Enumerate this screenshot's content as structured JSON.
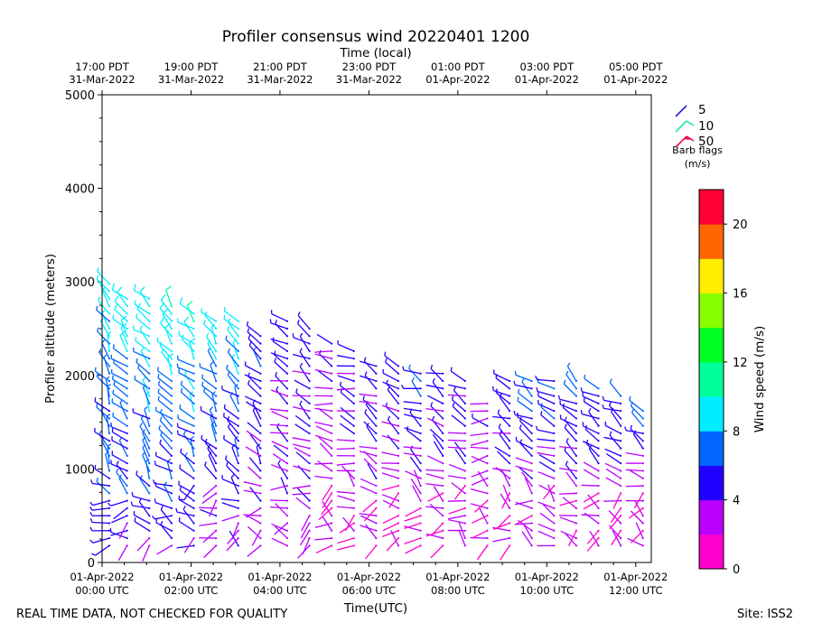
{
  "chart_data": {
    "type": "wind-barb-profile",
    "title": "Profiler consensus wind 20220401 1200",
    "top_axis_label": "Time (local)",
    "xlabel": "Time(UTC)",
    "ylabel": "Profiler altitude (meters)",
    "xlim_hours": [
      0,
      12.35
    ],
    "ylim": [
      0,
      5000
    ],
    "yticks": [
      0,
      1000,
      2000,
      3000,
      4000,
      5000
    ],
    "bottom_ticks": [
      {
        "hour": 0,
        "line1": "01-Apr-2022",
        "line2": "00:00 UTC"
      },
      {
        "hour": 2,
        "line1": "01-Apr-2022",
        "line2": "02:00 UTC"
      },
      {
        "hour": 4,
        "line1": "01-Apr-2022",
        "line2": "04:00 UTC"
      },
      {
        "hour": 6,
        "line1": "01-Apr-2022",
        "line2": "06:00 UTC"
      },
      {
        "hour": 8,
        "line1": "01-Apr-2022",
        "line2": "08:00 UTC"
      },
      {
        "hour": 10,
        "line1": "01-Apr-2022",
        "line2": "10:00 UTC"
      },
      {
        "hour": 12,
        "line1": "01-Apr-2022",
        "line2": "12:00 UTC"
      }
    ],
    "top_ticks": [
      {
        "hour": 0,
        "line1": "17:00 PDT",
        "line2": "31-Mar-2022"
      },
      {
        "hour": 2,
        "line1": "19:00 PDT",
        "line2": "31-Mar-2022"
      },
      {
        "hour": 4,
        "line1": "21:00 PDT",
        "line2": "31-Mar-2022"
      },
      {
        "hour": 6,
        "line1": "23:00 PDT",
        "line2": "31-Mar-2022"
      },
      {
        "hour": 8,
        "line1": "01:00 PDT",
        "line2": "01-Apr-2022"
      },
      {
        "hour": 10,
        "line1": "03:00 PDT",
        "line2": "01-Apr-2022"
      },
      {
        "hour": 12,
        "line1": "05:00 PDT",
        "line2": "01-Apr-2022"
      }
    ],
    "barb_legend": {
      "items": [
        {
          "label": "5",
          "color": "#1f1fd6"
        },
        {
          "label": "10",
          "color": "#1de9a0"
        },
        {
          "label": "50",
          "color": "#e8114a"
        }
      ],
      "title_line1": "Barb flags",
      "title_line2": "(m/s)"
    },
    "colorbar": {
      "label": "Wind speed (m/s)",
      "min": 0,
      "max": 22,
      "ticks": [
        0,
        4,
        8,
        12,
        16,
        20
      ],
      "colors": [
        "#ff00cc",
        "#bb00ff",
        "#2200ff",
        "#0066ff",
        "#00eeff",
        "#00ff99",
        "#00ff22",
        "#88ff00",
        "#ffee00",
        "#ff6600",
        "#ff0033"
      ]
    },
    "profiles": [
      {
        "hour": 0.0,
        "top": 3050,
        "speed_low": 5,
        "speed_high": 9,
        "dir": 330
      },
      {
        "hour": 0.4,
        "top": 2870,
        "speed_low": 4,
        "speed_high": 10,
        "dir": 320
      },
      {
        "hour": 0.9,
        "top": 2850,
        "speed_low": 4,
        "speed_high": 10,
        "dir": 320
      },
      {
        "hour": 1.4,
        "top": 2750,
        "speed_low": 4,
        "speed_high": 10,
        "dir": 320
      },
      {
        "hour": 1.9,
        "top": 2700,
        "speed_low": 4,
        "speed_high": 10,
        "dir": 320
      },
      {
        "hour": 2.4,
        "top": 2650,
        "speed_low": 3,
        "speed_high": 9,
        "dir": 320
      },
      {
        "hour": 2.9,
        "top": 2600,
        "speed_low": 3,
        "speed_high": 9,
        "dir": 320
      },
      {
        "hour": 3.4,
        "top": 2450,
        "speed_low": 3,
        "speed_high": 6,
        "dir": 320
      },
      {
        "hour": 4.0,
        "top": 2600,
        "speed_low": 3,
        "speed_high": 5,
        "dir": 300
      },
      {
        "hour": 4.5,
        "top": 2500,
        "speed_low": 3,
        "speed_high": 5,
        "dir": 300
      },
      {
        "hour": 5.0,
        "top": 2400,
        "speed_low": 2,
        "speed_high": 4,
        "dir": 290
      },
      {
        "hour": 5.5,
        "top": 2300,
        "speed_low": 2,
        "speed_high": 5,
        "dir": 290
      },
      {
        "hour": 6.0,
        "top": 2150,
        "speed_low": 2,
        "speed_high": 5,
        "dir": 300
      },
      {
        "hour": 6.5,
        "top": 2100,
        "speed_low": 2,
        "speed_high": 5,
        "dir": 300
      },
      {
        "hour": 7.0,
        "top": 2050,
        "speed_low": 2,
        "speed_high": 6,
        "dir": 300
      },
      {
        "hour": 7.5,
        "top": 2050,
        "speed_low": 2,
        "speed_high": 5,
        "dir": 300
      },
      {
        "hour": 8.0,
        "top": 2000,
        "speed_low": 2,
        "speed_high": 5,
        "dir": 300
      },
      {
        "hour": 8.5,
        "top": 1750,
        "speed_low": 2,
        "speed_high": 4,
        "dir": 270
      },
      {
        "hour": 9.0,
        "top": 2000,
        "speed_low": 2,
        "speed_high": 6,
        "dir": 300
      },
      {
        "hour": 9.5,
        "top": 2000,
        "speed_low": 2,
        "speed_high": 7,
        "dir": 300
      },
      {
        "hour": 10.0,
        "top": 2000,
        "speed_low": 2,
        "speed_high": 7,
        "dir": 300
      },
      {
        "hour": 10.5,
        "top": 2000,
        "speed_low": 2,
        "speed_high": 7,
        "dir": 300
      },
      {
        "hour": 11.0,
        "top": 1900,
        "speed_low": 2,
        "speed_high": 6,
        "dir": 300
      },
      {
        "hour": 11.5,
        "top": 1800,
        "speed_low": 2,
        "speed_high": 6,
        "dir": 300
      },
      {
        "hour": 12.0,
        "top": 1650,
        "speed_low": 2,
        "speed_high": 6,
        "dir": 300
      }
    ]
  },
  "footer": {
    "left": "REAL TIME DATA, NOT CHECKED FOR QUALITY",
    "right": "Site: ISS2"
  }
}
